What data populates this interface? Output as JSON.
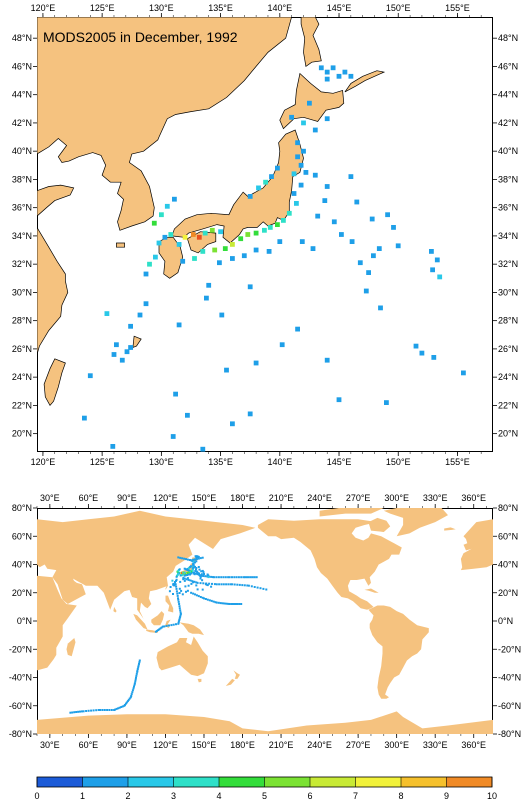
{
  "title": "MODS2005 in December, 1992",
  "top_map": {
    "lon_ticks": [
      "120°E",
      "125°E",
      "130°E",
      "135°E",
      "140°E",
      "145°E",
      "150°E",
      "155°E"
    ],
    "lat_ticks": [
      "20°N",
      "22°N",
      "24°N",
      "26°N",
      "28°N",
      "30°N",
      "32°N",
      "34°N",
      "36°N",
      "38°N",
      "40°N",
      "42°N",
      "44°N",
      "46°N",
      "48°N"
    ],
    "extent": {
      "lon": [
        119.5,
        158
      ],
      "lat": [
        18.7,
        49.5
      ]
    },
    "land_color": "#f5c27f",
    "ocean_color": "#ffffff"
  },
  "bottom_map": {
    "lon_ticks": [
      "30°E",
      "60°E",
      "90°E",
      "120°E",
      "150°E",
      "180°E",
      "210°E",
      "240°E",
      "270°E",
      "300°E",
      "330°E",
      "360°E"
    ],
    "lat_ticks": [
      "-80°N",
      "-60°N",
      "-40°N",
      "-20°N",
      "0°N",
      "20°N",
      "40°N",
      "60°N",
      "80°N"
    ],
    "extent": {
      "lon": [
        20,
        375
      ],
      "lat": [
        -80,
        80
      ]
    },
    "land_color": "#f5c27f"
  },
  "colorbar": {
    "labels": [
      "0",
      "1",
      "2",
      "3",
      "4",
      "5",
      "6",
      "7",
      "8",
      "9",
      "10"
    ],
    "colors": [
      "#1c5bd8",
      "#1e9fe8",
      "#29c8e8",
      "#2ee0c8",
      "#33dd3a",
      "#7be233",
      "#c8ea35",
      "#f2f23a",
      "#f5c02c",
      "#f08a26",
      "#e8501e"
    ]
  },
  "observations": {
    "description_none": "",
    "points": [
      [
        143.5,
        45.9,
        1
      ],
      [
        144,
        45.6,
        1
      ],
      [
        144.5,
        45.9,
        1
      ],
      [
        145,
        45.3,
        1
      ],
      [
        145.5,
        45.6,
        1
      ],
      [
        146,
        45.3,
        1
      ],
      [
        144,
        45.1,
        1
      ],
      [
        141,
        42.4,
        1
      ],
      [
        142,
        42,
        2
      ],
      [
        143,
        41.5,
        1
      ],
      [
        144,
        42.3,
        1
      ],
      [
        142.5,
        43.4,
        1
      ],
      [
        141.5,
        40.6,
        1
      ],
      [
        142,
        40,
        1
      ],
      [
        141.5,
        39.6,
        1
      ],
      [
        141.8,
        39,
        1
      ],
      [
        142.2,
        38.5,
        1
      ],
      [
        141.2,
        38.4,
        2
      ],
      [
        141.8,
        37.6,
        1
      ],
      [
        141.2,
        37,
        1
      ],
      [
        141.4,
        36.3,
        2
      ],
      [
        140.8,
        35.6,
        3
      ],
      [
        140.3,
        35.1,
        3
      ],
      [
        139.8,
        34.8,
        4
      ],
      [
        139.2,
        34.6,
        3
      ],
      [
        138.7,
        34.4,
        3
      ],
      [
        138,
        34.2,
        4
      ],
      [
        137.3,
        34.1,
        5
      ],
      [
        136.7,
        33.8,
        4
      ],
      [
        136,
        33.4,
        6
      ],
      [
        135.4,
        33.1,
        4
      ],
      [
        134.5,
        33,
        5
      ],
      [
        133.5,
        32.9,
        3
      ],
      [
        132.8,
        32.4,
        3
      ],
      [
        131.8,
        32.2,
        1
      ],
      [
        131.5,
        33.4,
        2
      ],
      [
        132,
        33.9,
        7
      ],
      [
        132.7,
        34.1,
        9
      ],
      [
        133.2,
        33.9,
        10
      ],
      [
        133.7,
        34.2,
        3
      ],
      [
        134.3,
        34.4,
        5
      ],
      [
        135,
        34.3,
        2
      ],
      [
        130.8,
        34.1,
        3
      ],
      [
        130.3,
        33.9,
        1
      ],
      [
        129.8,
        33.5,
        2
      ],
      [
        129.5,
        32.5,
        2
      ],
      [
        129,
        32,
        3
      ],
      [
        128.7,
        31.3,
        1
      ],
      [
        129.4,
        34.9,
        4
      ],
      [
        130,
        35.5,
        3
      ],
      [
        130.5,
        36.1,
        2
      ],
      [
        131.1,
        36.6,
        1
      ],
      [
        137.5,
        36.8,
        1
      ],
      [
        138.2,
        37.4,
        2
      ],
      [
        138.8,
        37.8,
        3
      ],
      [
        139.3,
        38.2,
        1
      ],
      [
        139.8,
        38.8,
        1
      ],
      [
        143,
        38.3,
        1
      ],
      [
        144,
        37.5,
        1
      ],
      [
        143.8,
        36.5,
        1
      ],
      [
        143.2,
        35.4,
        1
      ],
      [
        144.6,
        35,
        1
      ],
      [
        145.2,
        34.1,
        1
      ],
      [
        146.1,
        33.6,
        1
      ],
      [
        146.8,
        32.1,
        1
      ],
      [
        147.5,
        31.4,
        1
      ],
      [
        147.9,
        32.6,
        1
      ],
      [
        148.4,
        33.1,
        1
      ],
      [
        149.1,
        35.5,
        1
      ],
      [
        149.6,
        34.6,
        1
      ],
      [
        150,
        33.3,
        1
      ],
      [
        152.8,
        32.9,
        1
      ],
      [
        153.3,
        32.3,
        1
      ],
      [
        152.9,
        31.6,
        1
      ],
      [
        153.5,
        31.1,
        2
      ],
      [
        146,
        38.2,
        1
      ],
      [
        146.5,
        36.4,
        1
      ],
      [
        147.8,
        35.2,
        1
      ],
      [
        141.9,
        33.6,
        1
      ],
      [
        142.8,
        33.1,
        1
      ],
      [
        140,
        33.6,
        1
      ],
      [
        139.1,
        32.9,
        1
      ],
      [
        138,
        33,
        1
      ],
      [
        137,
        32.6,
        1
      ],
      [
        136,
        32.4,
        1
      ],
      [
        134.9,
        32.1,
        1
      ],
      [
        128.7,
        29.2,
        1
      ],
      [
        128.2,
        28.4,
        1
      ],
      [
        127.4,
        27.6,
        1
      ],
      [
        126.2,
        26.3,
        1
      ],
      [
        127.1,
        25.8,
        1
      ],
      [
        126.7,
        25.2,
        1
      ],
      [
        127.4,
        26.1,
        1
      ],
      [
        126,
        25.6,
        1
      ],
      [
        125.4,
        28.5,
        2
      ],
      [
        124,
        24.1,
        1
      ],
      [
        123.5,
        21.1,
        1
      ],
      [
        125.9,
        19.1,
        1
      ],
      [
        131,
        19.8,
        1
      ],
      [
        133.5,
        18.9,
        1
      ],
      [
        131.2,
        22.8,
        1
      ],
      [
        132.2,
        21.3,
        1
      ],
      [
        136,
        20.7,
        1
      ],
      [
        137.5,
        21.4,
        1
      ],
      [
        138,
        25,
        1
      ],
      [
        141.5,
        27.4,
        1
      ],
      [
        140.2,
        26.3,
        1
      ],
      [
        144,
        25.2,
        1
      ],
      [
        145,
        22.4,
        1
      ],
      [
        149,
        22.2,
        1
      ],
      [
        151.5,
        26.2,
        1
      ],
      [
        152,
        25.7,
        1
      ],
      [
        153,
        25.4,
        1
      ],
      [
        155.5,
        24.3,
        1
      ],
      [
        148.5,
        28.9,
        1
      ],
      [
        147.3,
        30.1,
        1
      ],
      [
        134,
        30.5,
        1
      ],
      [
        133.8,
        29.6,
        1
      ],
      [
        137.5,
        30.4,
        1
      ],
      [
        135.1,
        28.4,
        1
      ],
      [
        131.5,
        27.7,
        1
      ],
      [
        135.5,
        24.5,
        1
      ]
    ]
  },
  "global_tracks": [
    [
      [
        100,
        -28
      ],
      [
        98,
        -36
      ],
      [
        96,
        -45
      ],
      [
        93,
        -54
      ],
      [
        88,
        -60
      ],
      [
        80,
        -63
      ],
      [
        68,
        -63
      ],
      [
        55,
        -64
      ],
      [
        45,
        -65
      ]
    ],
    [
      [
        135,
        37
      ],
      [
        140,
        35
      ],
      [
        148,
        32
      ],
      [
        158,
        31
      ],
      [
        170,
        31
      ],
      [
        182,
        31
      ],
      [
        192,
        31
      ]
    ],
    [
      [
        135,
        30
      ],
      [
        145,
        27
      ],
      [
        160,
        26
      ],
      [
        172,
        26
      ],
      [
        185,
        25
      ],
      [
        200,
        22
      ]
    ],
    [
      [
        128,
        26
      ],
      [
        130,
        15
      ],
      [
        132,
        5
      ],
      [
        130,
        -2
      ],
      [
        118,
        -4
      ],
      [
        112,
        -8
      ]
    ],
    [
      [
        140,
        20
      ],
      [
        150,
        16
      ],
      [
        160,
        13
      ],
      [
        170,
        12
      ],
      [
        180,
        12
      ]
    ],
    [
      [
        130,
        45
      ],
      [
        140,
        43
      ],
      [
        150,
        45
      ]
    ]
  ]
}
